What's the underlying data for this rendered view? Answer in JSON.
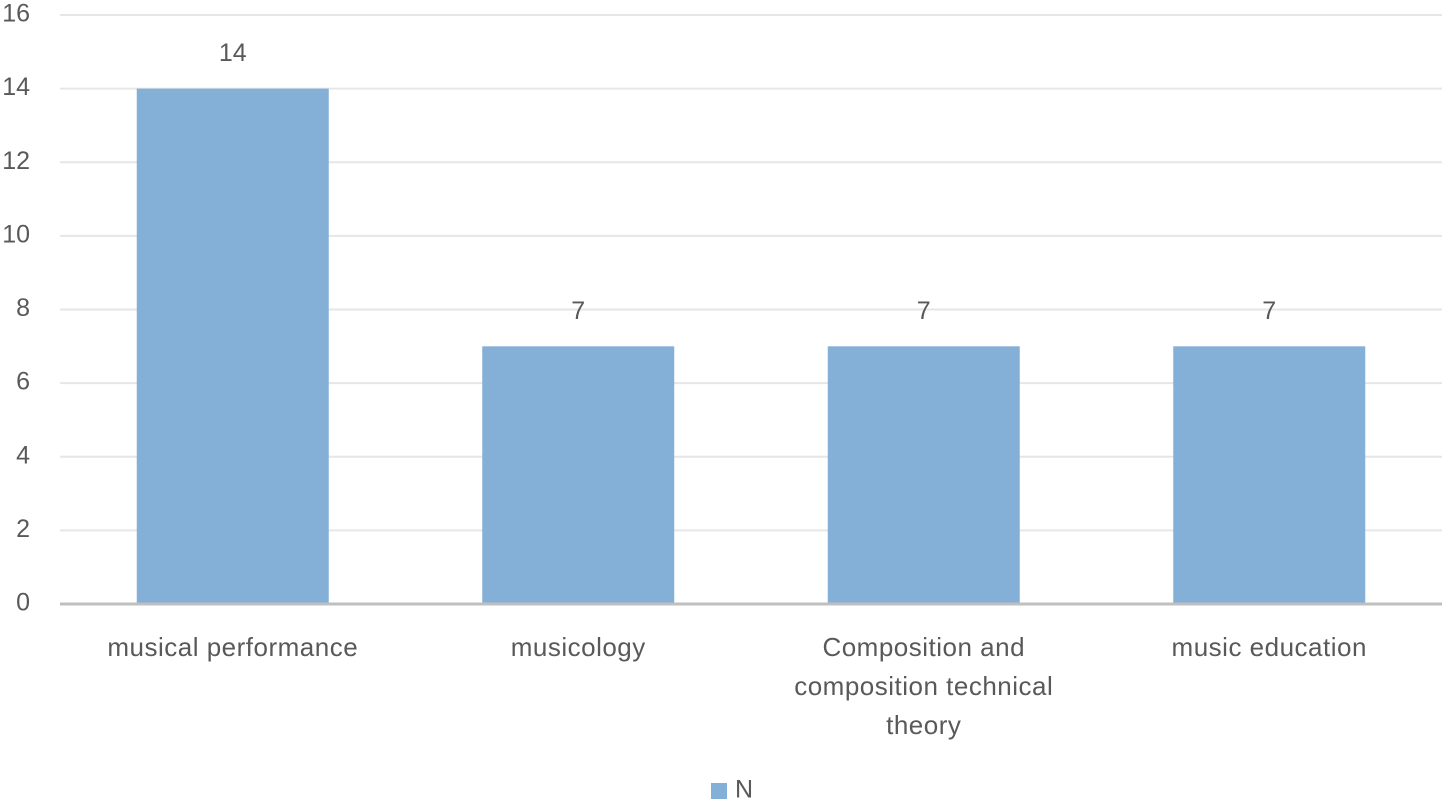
{
  "chart_data": {
    "type": "bar",
    "categories": [
      "musical performance",
      "musicology",
      "Composition and composition technical theory",
      "music education"
    ],
    "series": [
      {
        "name": "N",
        "color": "#84afd6",
        "values": [
          14,
          7,
          7,
          7
        ]
      }
    ],
    "ylim": [
      0,
      16
    ],
    "yticks": [
      0,
      2,
      4,
      6,
      8,
      10,
      12,
      14,
      16
    ],
    "grid": true,
    "legend": "bottom"
  }
}
